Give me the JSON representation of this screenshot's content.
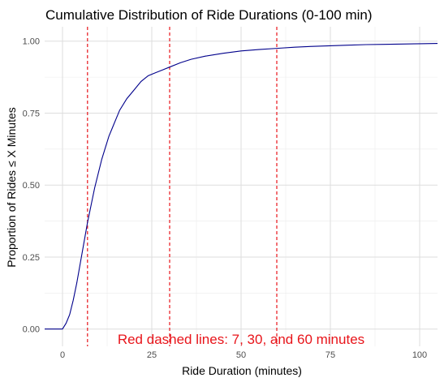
{
  "chart_data": {
    "type": "line",
    "title": "Cumulative Distribution of Ride Durations (0-100 min)",
    "xlabel": "Ride Duration (minutes)",
    "ylabel": "Proportion of Rides ≤ X Minutes",
    "xlim": [
      -5,
      105
    ],
    "ylim": [
      -0.06,
      1.05
    ],
    "x_ticks": [
      0,
      25,
      50,
      75,
      100
    ],
    "x_tick_labels": [
      "0",
      "25",
      "50",
      "75",
      "100"
    ],
    "y_ticks": [
      0,
      0.25,
      0.5,
      0.75,
      1
    ],
    "y_tick_labels": [
      "0.00",
      "0.25",
      "0.50",
      "0.75",
      "1.00"
    ],
    "grid": true,
    "series": [
      {
        "color": "#00008b",
        "x": [
          -5,
          0,
          1,
          2,
          3,
          4,
          5,
          6,
          7,
          8,
          9,
          10,
          11,
          12,
          13,
          14,
          15,
          16,
          18,
          20,
          22,
          24,
          26,
          28,
          30,
          33,
          36,
          40,
          45,
          50,
          55,
          60,
          65,
          70,
          75,
          80,
          85,
          90,
          95,
          100,
          105
        ],
        "y": [
          0,
          0,
          0.02,
          0.05,
          0.1,
          0.16,
          0.23,
          0.3,
          0.37,
          0.43,
          0.49,
          0.54,
          0.59,
          0.63,
          0.67,
          0.7,
          0.73,
          0.76,
          0.8,
          0.83,
          0.86,
          0.88,
          0.89,
          0.9,
          0.91,
          0.925,
          0.937,
          0.948,
          0.958,
          0.966,
          0.971,
          0.975,
          0.979,
          0.982,
          0.984,
          0.986,
          0.988,
          0.989,
          0.99,
          0.991,
          0.992
        ]
      }
    ],
    "vlines": [
      7,
      30,
      60
    ],
    "vline_color": "#e8141a",
    "annotation": {
      "text": "Red dashed lines: 7, 30, and 60 minutes",
      "x": 50,
      "y": -0.035,
      "color": "#e8141a"
    }
  }
}
